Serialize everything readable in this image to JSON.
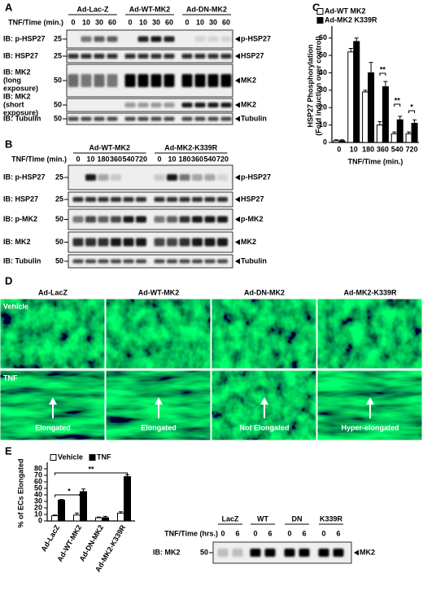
{
  "panels": {
    "a": {
      "label": "A",
      "groups": [
        "Ad-Lac-Z",
        "Ad-WT-MK2",
        "Ad-DN-MK2"
      ],
      "time_label": "TNF/Time (min.)",
      "lanes": [
        "0",
        "10",
        "30",
        "60",
        "0",
        "10",
        "30",
        "60",
        "0",
        "10",
        "30",
        "60"
      ],
      "rows": [
        {
          "antibody": [
            "IB: p-HSP27"
          ],
          "mw": "25",
          "target": "p-HSP27"
        },
        {
          "antibody": [
            "IB: HSP27"
          ],
          "mw": "25",
          "target": "HSP27"
        },
        {
          "antibody": [
            "IB: MK2",
            "(long",
            "exposure)"
          ],
          "mw": "50",
          "target": "MK2"
        },
        {
          "antibody": [
            "IB: MK2",
            "(short",
            "exposure)"
          ],
          "mw": "50",
          "target": "MK2"
        },
        {
          "antibody": [
            "IB: Tubulin"
          ],
          "mw": "50",
          "target": "Tubulin"
        }
      ]
    },
    "b": {
      "label": "B",
      "groups": [
        "Ad-WT-MK2",
        "Ad-MK2-K339R"
      ],
      "time_label": "TNF/Time (min.)",
      "lanes": [
        "0",
        "10",
        "180",
        "360",
        "540",
        "720",
        "0",
        "10",
        "180",
        "360",
        "540",
        "720"
      ],
      "rows": [
        {
          "antibody": [
            "IB: p-HSP27"
          ],
          "mw": "25",
          "target": "p-HSP27"
        },
        {
          "antibody": [
            "IB: HSP27"
          ],
          "mw": "25",
          "target": "HSP27"
        },
        {
          "antibody": [
            "IB: p-MK2"
          ],
          "mw": "50",
          "target": "p-MK2"
        },
        {
          "antibody": [
            "IB: MK2"
          ],
          "mw": "50",
          "target": "MK2"
        },
        {
          "antibody": [
            "IB: Tubulin"
          ],
          "mw": "50",
          "target": "Tubulin"
        }
      ]
    },
    "d": {
      "label": "D",
      "columns": [
        "Ad-LacZ",
        "Ad-WT-MK2",
        "Ad-DN-MK2",
        "Ad-MK2-K339R"
      ],
      "conditions": [
        "Vehicle",
        "TNF"
      ],
      "captions": [
        "Elongated",
        "Elongated",
        "Not Elongated",
        "Hyper-elongated"
      ]
    },
    "e_blot": {
      "groups": [
        "LacZ",
        "WT",
        "DN",
        "K339R"
      ],
      "time_label": "TNF/Time (hrs.)",
      "lanes": [
        "0",
        "6",
        "0",
        "6",
        "0",
        "6",
        "0",
        "6"
      ],
      "rows": [
        {
          "antibody": [
            "IB: MK2"
          ],
          "mw": "50",
          "target": "MK2"
        }
      ]
    }
  },
  "chart_data": [
    {
      "type": "bar",
      "panel_label": "C",
      "ylabel": [
        "HSP27 Phosphorylation",
        "(Fold induction over control)"
      ],
      "xlabel": "TNF/Time (min.)",
      "categories": [
        "0",
        "10",
        "180",
        "360",
        "540",
        "720"
      ],
      "series": [
        {
          "name": "Ad-WT MK2",
          "color": "#ffffff",
          "values": [
            1,
            52,
            29,
            10,
            5,
            5
          ],
          "errors": [
            0.5,
            2,
            1,
            2,
            1,
            1
          ]
        },
        {
          "name": "Ad-MK2 K339R",
          "color": "#000000",
          "values": [
            1,
            58,
            40,
            32,
            13,
            11
          ],
          "errors": [
            0.5,
            2,
            6,
            3,
            2,
            2
          ]
        }
      ],
      "ylim": [
        0,
        65
      ],
      "yticks": [
        0,
        10,
        20,
        30,
        40,
        50,
        60
      ],
      "legend": "upper left",
      "annotations": [
        "**",
        "**",
        "*"
      ]
    },
    {
      "type": "bar",
      "panel_label": "E",
      "ylabel": [
        "% of ECs Elongated"
      ],
      "categories": [
        "Ad-LacZ",
        "Ad-WT-MK2",
        "Ad-DN-MK2",
        "Ad-MK2-K339R"
      ],
      "series": [
        {
          "name": "Vehicle",
          "color": "#ffffff",
          "values": [
            8,
            9,
            5,
            12
          ],
          "errors": [
            1,
            3,
            1,
            2
          ]
        },
        {
          "name": "TNF",
          "color": "#000000",
          "values": [
            32,
            45,
            5,
            68
          ],
          "errors": [
            1,
            4,
            2,
            3
          ]
        }
      ],
      "ylim": [
        0,
        85
      ],
      "yticks": [
        0,
        10,
        20,
        30,
        40,
        50,
        60,
        70,
        80
      ],
      "legend": "top",
      "annotations": [
        "*",
        "*",
        "**"
      ]
    }
  ]
}
